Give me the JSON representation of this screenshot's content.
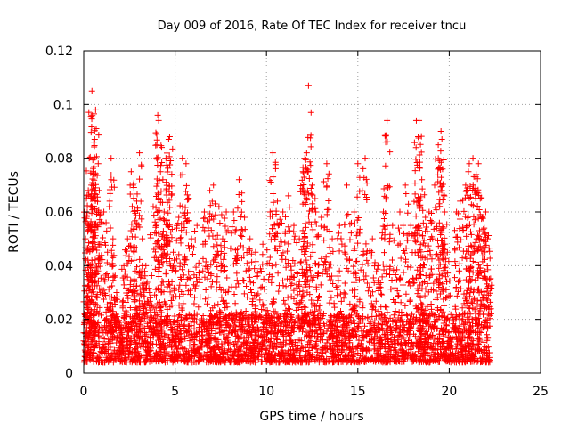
{
  "chart_data": {
    "type": "scatter",
    "title": "Day 009 of 2016, Rate Of TEC Index for receiver tncu",
    "xlabel": "GPS time / hours",
    "ylabel": "ROTI / TECUs",
    "xlim": [
      0,
      25
    ],
    "ylim": [
      0,
      0.12
    ],
    "xticks": [
      "0",
      "5",
      "10",
      "15",
      "20",
      "25"
    ],
    "yticks": [
      "0",
      "0.02",
      "0.04",
      "0.06",
      "0.08",
      "0.1",
      "0.12"
    ],
    "grid": true,
    "marker": "+",
    "marker_color": "#ff0000",
    "data_extent_hours": [
      0,
      22.3
    ],
    "series": [
      {
        "name": "",
        "points": [
          [
            0.0,
            0.012
          ],
          [
            0.1,
            0.05
          ],
          [
            0.15,
            0.065
          ],
          [
            0.25,
            0.068
          ],
          [
            0.3,
            0.08
          ],
          [
            0.35,
            0.055
          ],
          [
            0.45,
            0.105
          ],
          [
            0.5,
            0.075
          ],
          [
            0.55,
            0.086
          ],
          [
            0.6,
            0.087
          ],
          [
            0.65,
            0.098
          ],
          [
            0.7,
            0.06
          ],
          [
            0.85,
            0.068
          ],
          [
            1.1,
            0.06
          ],
          [
            1.3,
            0.045
          ],
          [
            1.5,
            0.08
          ],
          [
            1.6,
            0.05
          ],
          [
            1.8,
            0.03
          ],
          [
            2.2,
            0.04
          ],
          [
            2.4,
            0.05
          ],
          [
            2.6,
            0.075
          ],
          [
            2.7,
            0.07
          ],
          [
            2.9,
            0.064
          ],
          [
            3.05,
            0.082
          ],
          [
            3.2,
            0.05
          ],
          [
            3.4,
            0.04
          ],
          [
            3.6,
            0.03
          ],
          [
            3.8,
            0.062
          ],
          [
            4.05,
            0.096
          ],
          [
            4.1,
            0.094
          ],
          [
            4.2,
            0.075
          ],
          [
            4.4,
            0.06
          ],
          [
            4.5,
            0.08
          ],
          [
            4.65,
            0.087
          ],
          [
            4.7,
            0.088
          ],
          [
            4.9,
            0.045
          ],
          [
            5.2,
            0.058
          ],
          [
            5.4,
            0.08
          ],
          [
            5.6,
            0.078
          ],
          [
            5.9,
            0.05
          ],
          [
            6.2,
            0.055
          ],
          [
            6.6,
            0.06
          ],
          [
            6.9,
            0.068
          ],
          [
            7.1,
            0.07
          ],
          [
            7.4,
            0.062
          ],
          [
            7.6,
            0.05
          ],
          [
            7.8,
            0.06
          ],
          [
            8.2,
            0.06
          ],
          [
            8.5,
            0.072
          ],
          [
            8.8,
            0.058
          ],
          [
            9.1,
            0.05
          ],
          [
            9.4,
            0.045
          ],
          [
            9.8,
            0.048
          ],
          [
            10.2,
            0.06
          ],
          [
            10.35,
            0.082
          ],
          [
            10.6,
            0.064
          ],
          [
            10.9,
            0.06
          ],
          [
            11.2,
            0.066
          ],
          [
            11.5,
            0.055
          ],
          [
            11.8,
            0.05
          ],
          [
            12.0,
            0.075
          ],
          [
            12.1,
            0.08
          ],
          [
            12.2,
            0.082
          ],
          [
            12.3,
            0.107
          ],
          [
            12.5,
            0.07
          ],
          [
            12.7,
            0.06
          ],
          [
            13.0,
            0.058
          ],
          [
            13.3,
            0.078
          ],
          [
            13.6,
            0.05
          ],
          [
            14.0,
            0.055
          ],
          [
            14.4,
            0.07
          ],
          [
            14.8,
            0.06
          ],
          [
            15.0,
            0.078
          ],
          [
            15.4,
            0.08
          ],
          [
            15.8,
            0.05
          ],
          [
            16.1,
            0.04
          ],
          [
            16.4,
            0.06
          ],
          [
            16.6,
            0.094
          ],
          [
            16.9,
            0.055
          ],
          [
            17.3,
            0.06
          ],
          [
            17.6,
            0.07
          ],
          [
            17.9,
            0.055
          ],
          [
            18.2,
            0.094
          ],
          [
            18.3,
            0.088
          ],
          [
            18.35,
            0.094
          ],
          [
            18.5,
            0.072
          ],
          [
            18.7,
            0.058
          ],
          [
            18.9,
            0.06
          ],
          [
            19.2,
            0.07
          ],
          [
            19.4,
            0.085
          ],
          [
            19.55,
            0.09
          ],
          [
            19.6,
            0.087
          ],
          [
            19.75,
            0.06
          ],
          [
            19.9,
            0.045
          ],
          [
            20.4,
            0.06
          ],
          [
            20.6,
            0.064
          ],
          [
            20.9,
            0.07
          ],
          [
            21.05,
            0.075
          ],
          [
            21.1,
            0.078
          ],
          [
            21.3,
            0.08
          ],
          [
            21.45,
            0.073
          ],
          [
            21.6,
            0.078
          ],
          [
            21.7,
            0.065
          ],
          [
            21.8,
            0.058
          ],
          [
            22.0,
            0.06
          ],
          [
            22.1,
            0.05
          ],
          [
            22.2,
            0.035
          ]
        ]
      }
    ]
  }
}
